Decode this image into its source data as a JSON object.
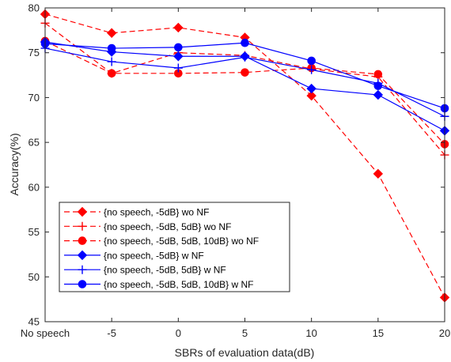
{
  "chart_data": {
    "type": "line",
    "title": "",
    "xlabel": "SBRs of evaluation data(dB)",
    "ylabel": "Accuracy(%)",
    "categories": [
      "No speech",
      "-5",
      "0",
      "5",
      "10",
      "15",
      "20"
    ],
    "ylim": [
      45,
      80
    ],
    "yticks": [
      45,
      50,
      55,
      60,
      65,
      70,
      75,
      80
    ],
    "grid": false,
    "legend_position": "lower-left",
    "series": [
      {
        "name": "{no speech, -5dB} wo NF",
        "color": "#ff0000",
        "line_style": "dashed",
        "marker": "diamond",
        "values": [
          79.3,
          77.2,
          77.8,
          76.7,
          70.2,
          61.5,
          47.7
        ]
      },
      {
        "name": "{no speech, -5dB, 5dB} wo NF",
        "color": "#ff0000",
        "line_style": "dashed",
        "marker": "plus",
        "values": [
          78.3,
          72.7,
          75.0,
          74.7,
          73.2,
          72.3,
          63.6
        ]
      },
      {
        "name": "{no speech, -5dB, 5dB, 10dB} wo NF",
        "color": "#ff0000",
        "line_style": "dashed",
        "marker": "circle",
        "values": [
          76.3,
          72.7,
          72.7,
          72.8,
          73.3,
          72.6,
          64.8
        ]
      },
      {
        "name": "{no speech, -5dB} w NF",
        "color": "#0000ff",
        "line_style": "solid",
        "marker": "diamond",
        "values": [
          76.2,
          75.1,
          74.6,
          74.6,
          71.0,
          70.3,
          66.3
        ]
      },
      {
        "name": "{no speech, -5dB, 5dB} w NF",
        "color": "#0000ff",
        "line_style": "solid",
        "marker": "plus",
        "values": [
          75.5,
          74.0,
          73.3,
          74.5,
          73.1,
          71.6,
          67.9
        ]
      },
      {
        "name": "{no speech, -5dB, 5dB, 10dB} w NF",
        "color": "#0000ff",
        "line_style": "solid",
        "marker": "circle",
        "values": [
          76.0,
          75.5,
          75.6,
          76.1,
          74.1,
          71.3,
          68.8
        ]
      }
    ]
  }
}
